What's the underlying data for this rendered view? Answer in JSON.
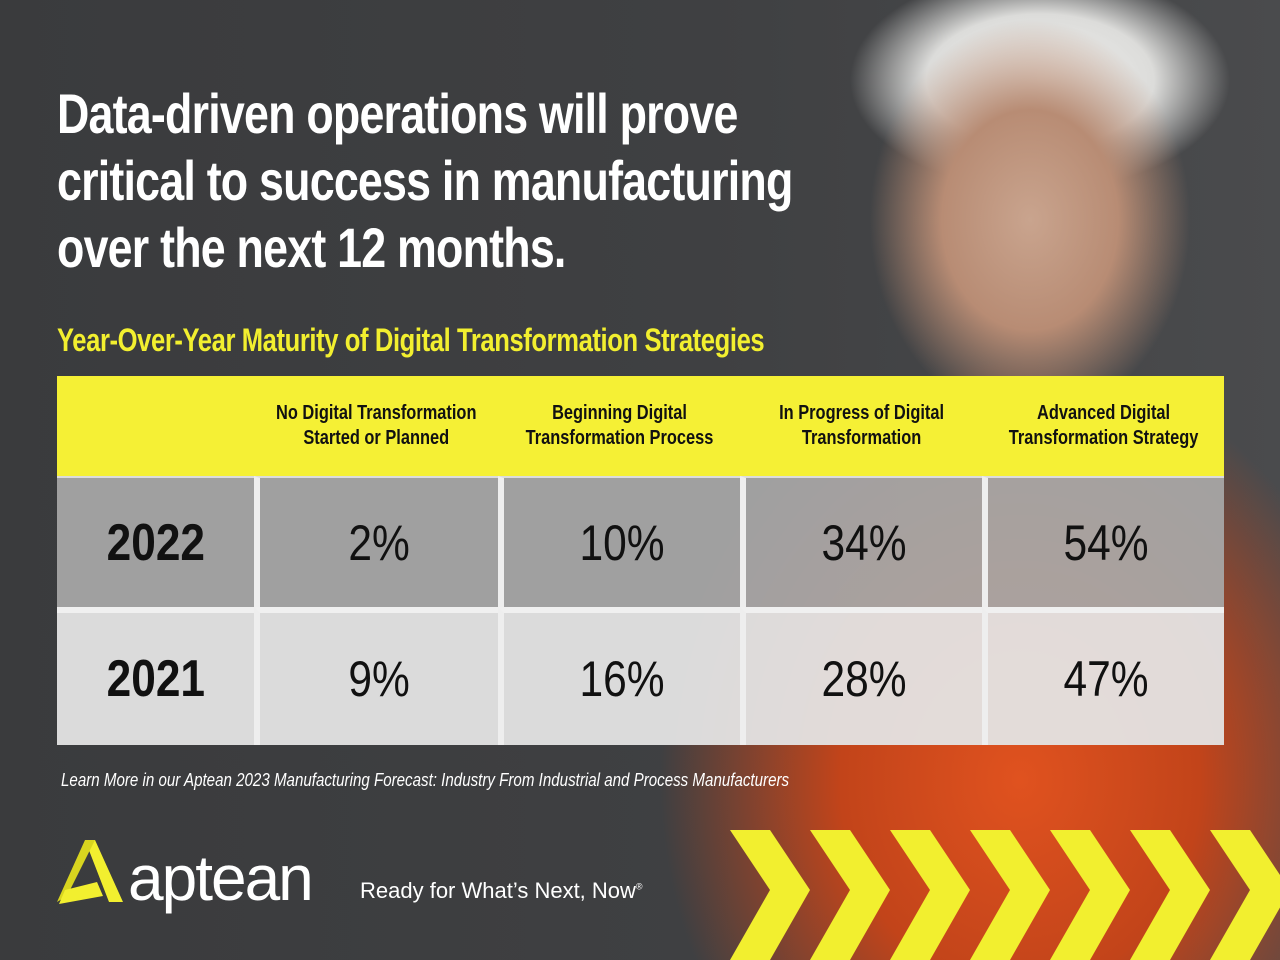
{
  "headline": {
    "lines": [
      "Data-driven operations will prove",
      "critical to success in manufacturing",
      "over the next 12 months."
    ]
  },
  "table_title": "Year-Over-Year Maturity of Digital Transformation Strategies",
  "table": {
    "columns": [
      [
        "No Digital Transformation",
        "Started or Planned"
      ],
      [
        "Beginning Digital",
        "Transformation Process"
      ],
      [
        "In Progress of Digital",
        "Transformation"
      ],
      [
        "Advanced Digital",
        "Transformation Strategy"
      ]
    ],
    "rows": [
      {
        "year": "2022",
        "values": [
          "2%",
          "10%",
          "34%",
          "54%"
        ]
      },
      {
        "year": "2021",
        "values": [
          "9%",
          "16%",
          "28%",
          "47%"
        ]
      }
    ]
  },
  "footnote": "Learn More in our Aptean 2023 Manufacturing Forecast: Industry From Industrial and Process Manufacturers",
  "brand": {
    "name": "aptean",
    "tagline": "Ready for What’s Next, Now",
    "registered": "®"
  },
  "colors": {
    "accent": "#f5f035",
    "background": "#3b3c3e",
    "row_2022": "#a8a8a8",
    "row_2021": "#e4e4e4"
  }
}
